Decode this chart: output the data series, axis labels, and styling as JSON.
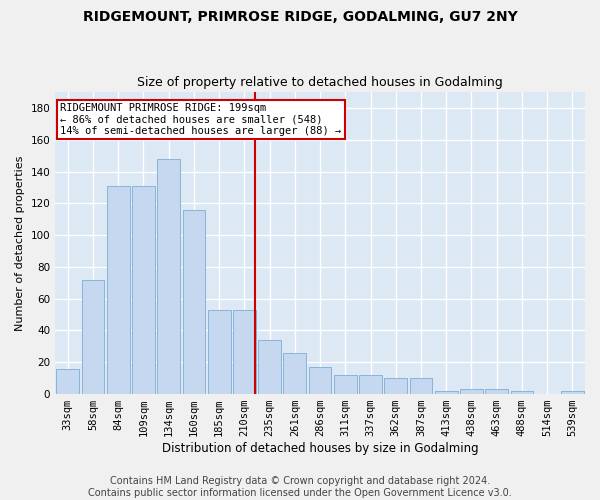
{
  "title1": "RIDGEMOUNT, PRIMROSE RIDGE, GODALMING, GU7 2NY",
  "title2": "Size of property relative to detached houses in Godalming",
  "xlabel": "Distribution of detached houses by size in Godalming",
  "ylabel": "Number of detached properties",
  "categories": [
    "33sqm",
    "58sqm",
    "84sqm",
    "109sqm",
    "134sqm",
    "160sqm",
    "185sqm",
    "210sqm",
    "235sqm",
    "261sqm",
    "286sqm",
    "311sqm",
    "337sqm",
    "362sqm",
    "387sqm",
    "413sqm",
    "438sqm",
    "463sqm",
    "488sqm",
    "514sqm",
    "539sqm"
  ],
  "values": [
    16,
    72,
    131,
    131,
    148,
    116,
    53,
    53,
    34,
    26,
    17,
    12,
    12,
    10,
    10,
    2,
    3,
    3,
    2,
    0,
    2
  ],
  "bar_color": "#c5d8f0",
  "bar_edge_color": "#7aadd4",
  "vline_color": "#cc0000",
  "annotation_text": "RIDGEMOUNT PRIMROSE RIDGE: 199sqm\n← 86% of detached houses are smaller (548)\n14% of semi-detached houses are larger (88) →",
  "annotation_box_color": "#ffffff",
  "annotation_box_edge": "#cc0000",
  "ylim": [
    0,
    190
  ],
  "yticks": [
    0,
    20,
    40,
    60,
    80,
    100,
    120,
    140,
    160,
    180
  ],
  "footer1": "Contains HM Land Registry data © Crown copyright and database right 2024.",
  "footer2": "Contains public sector information licensed under the Open Government Licence v3.0.",
  "bg_color": "#dde8f5",
  "grid_color": "#ffffff",
  "fig_bg_color": "#f0f0f0",
  "title1_fontsize": 10,
  "title2_fontsize": 9,
  "xlabel_fontsize": 8.5,
  "ylabel_fontsize": 8,
  "tick_fontsize": 7.5,
  "footer_fontsize": 7
}
